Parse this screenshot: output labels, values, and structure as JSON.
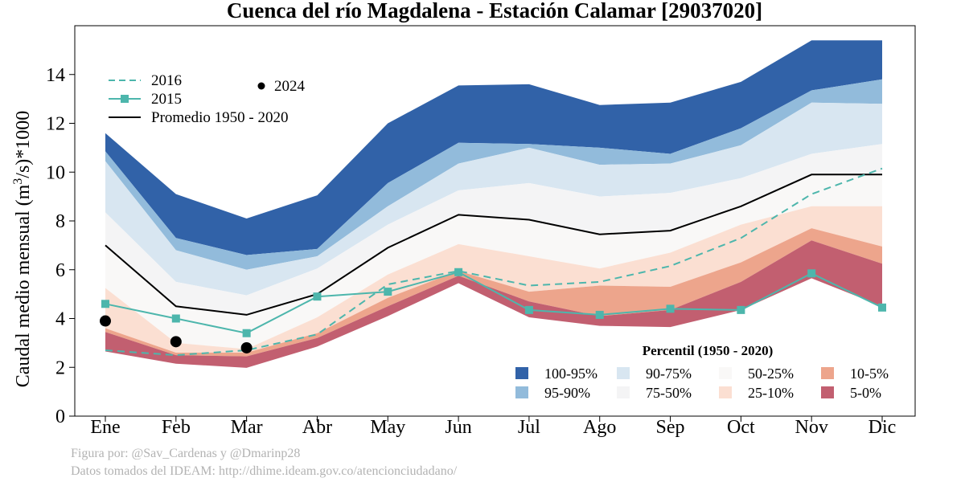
{
  "chart_data": {
    "type": "area",
    "title": "Cuenca del río Magdalena - Estación Calamar [29037020]",
    "ylabel_main": "Caudal medio mensual (m",
    "ylabel_sup": "3",
    "ylabel_tail": "/s)*1000",
    "xlabel": "",
    "categories": [
      "Ene",
      "Feb",
      "Mar",
      "Abr",
      "May",
      "Jun",
      "Jul",
      "Ago",
      "Sep",
      "Oct",
      "Nov",
      "Dic"
    ],
    "ylim": [
      0,
      16
    ],
    "yticks": [
      0,
      2,
      4,
      6,
      8,
      10,
      12,
      14
    ],
    "grid": false,
    "percentile_bounds": {
      "p0": [
        2.65,
        2.15,
        1.98,
        2.85,
        4.1,
        5.45,
        4.05,
        3.7,
        3.65,
        4.35,
        5.65,
        4.5
      ],
      "p5": [
        3.45,
        2.5,
        2.45,
        3.2,
        4.5,
        5.75,
        4.7,
        4.1,
        4.35,
        5.5,
        7.2,
        6.25
      ],
      "p10": [
        3.6,
        2.6,
        2.6,
        3.4,
        4.85,
        5.95,
        5.1,
        5.35,
        5.3,
        6.3,
        7.7,
        6.95
      ],
      "p25": [
        5.25,
        3.0,
        2.75,
        4.05,
        5.8,
        7.05,
        6.55,
        6.05,
        6.7,
        7.85,
        8.6,
        8.6
      ],
      "p50": [
        7.0,
        4.5,
        4.15,
        5.0,
        6.9,
        8.25,
        8.05,
        7.45,
        7.65,
        8.65,
        9.9,
        9.9
      ],
      "p75": [
        8.35,
        5.5,
        4.95,
        6.05,
        7.85,
        9.25,
        9.55,
        9.0,
        9.15,
        9.75,
        10.75,
        11.15
      ],
      "p90": [
        10.45,
        6.8,
        6.0,
        6.55,
        8.6,
        10.35,
        11.0,
        10.3,
        10.35,
        11.1,
        12.85,
        12.8
      ],
      "p95": [
        10.85,
        7.3,
        6.6,
        6.85,
        9.55,
        11.2,
        11.15,
        11.0,
        10.75,
        11.8,
        13.35,
        13.8
      ],
      "p100": [
        11.6,
        9.1,
        8.1,
        9.05,
        12.0,
        13.55,
        13.6,
        12.75,
        12.85,
        13.7,
        15.4,
        15.4
      ]
    },
    "series": [
      {
        "name": "Promedio 1950 - 2020",
        "style": "solid",
        "color": "#000000",
        "values": [
          7.0,
          4.5,
          4.15,
          5.0,
          6.9,
          8.25,
          8.05,
          7.45,
          7.6,
          8.6,
          9.9,
          9.9
        ]
      },
      {
        "name": "2016",
        "style": "dashed",
        "color": "#4db6ac",
        "values": [
          2.7,
          2.5,
          2.7,
          3.35,
          5.4,
          5.95,
          5.35,
          5.5,
          6.15,
          7.3,
          9.1,
          10.15
        ]
      },
      {
        "name": "2015",
        "style": "line-square",
        "color": "#4db6ac",
        "values": [
          4.6,
          4.0,
          3.4,
          4.9,
          5.1,
          5.9,
          4.35,
          4.15,
          4.4,
          4.35,
          5.85,
          4.45
        ]
      },
      {
        "name": "2024",
        "style": "points",
        "color": "#000000",
        "values": [
          3.9,
          3.05,
          2.8,
          null,
          null,
          null,
          null,
          null,
          null,
          null,
          null,
          null
        ]
      }
    ],
    "line_legend": [
      {
        "label": "2016",
        "style": "dashed"
      },
      {
        "label": "2015",
        "style": "line-square"
      },
      {
        "label": "Promedio 1950 - 2020",
        "style": "solid"
      },
      {
        "label": "2024",
        "style": "points"
      }
    ],
    "bands": [
      {
        "label": "100-95%",
        "from": "p95",
        "to": "p100",
        "color": "#3162a8"
      },
      {
        "label": "95-90%",
        "from": "p90",
        "to": "p95",
        "color": "#92bbdb"
      },
      {
        "label": "90-75%",
        "from": "p75",
        "to": "p90",
        "color": "#d8e6f1"
      },
      {
        "label": "75-50%",
        "from": "p50",
        "to": "p75",
        "color": "#f4f4f5"
      },
      {
        "label": "50-25%",
        "from": "p25",
        "to": "p50",
        "color": "#f9f8f7"
      },
      {
        "label": "25-10%",
        "from": "p10",
        "to": "p25",
        "color": "#fbdfd2"
      },
      {
        "label": "10-5%",
        "from": "p5",
        "to": "p10",
        "color": "#eda58c"
      },
      {
        "label": "5-0%",
        "from": "p0",
        "to": "p5",
        "color": "#c25f70"
      }
    ],
    "percentile_legend_title": "Percentil (1950 - 2020)",
    "percentile_legend_order": [
      "100-95%",
      "95-90%",
      "90-75%",
      "75-50%",
      "50-25%",
      "25-10%",
      "10-5%",
      "5-0%"
    ]
  },
  "footer": {
    "credit": "Figura por: @Sav_Cardenas y @Dmarinp28",
    "source": "Datos tomados del IDEAM: http://dhime.ideam.gov.co/atencionciudadano/"
  }
}
